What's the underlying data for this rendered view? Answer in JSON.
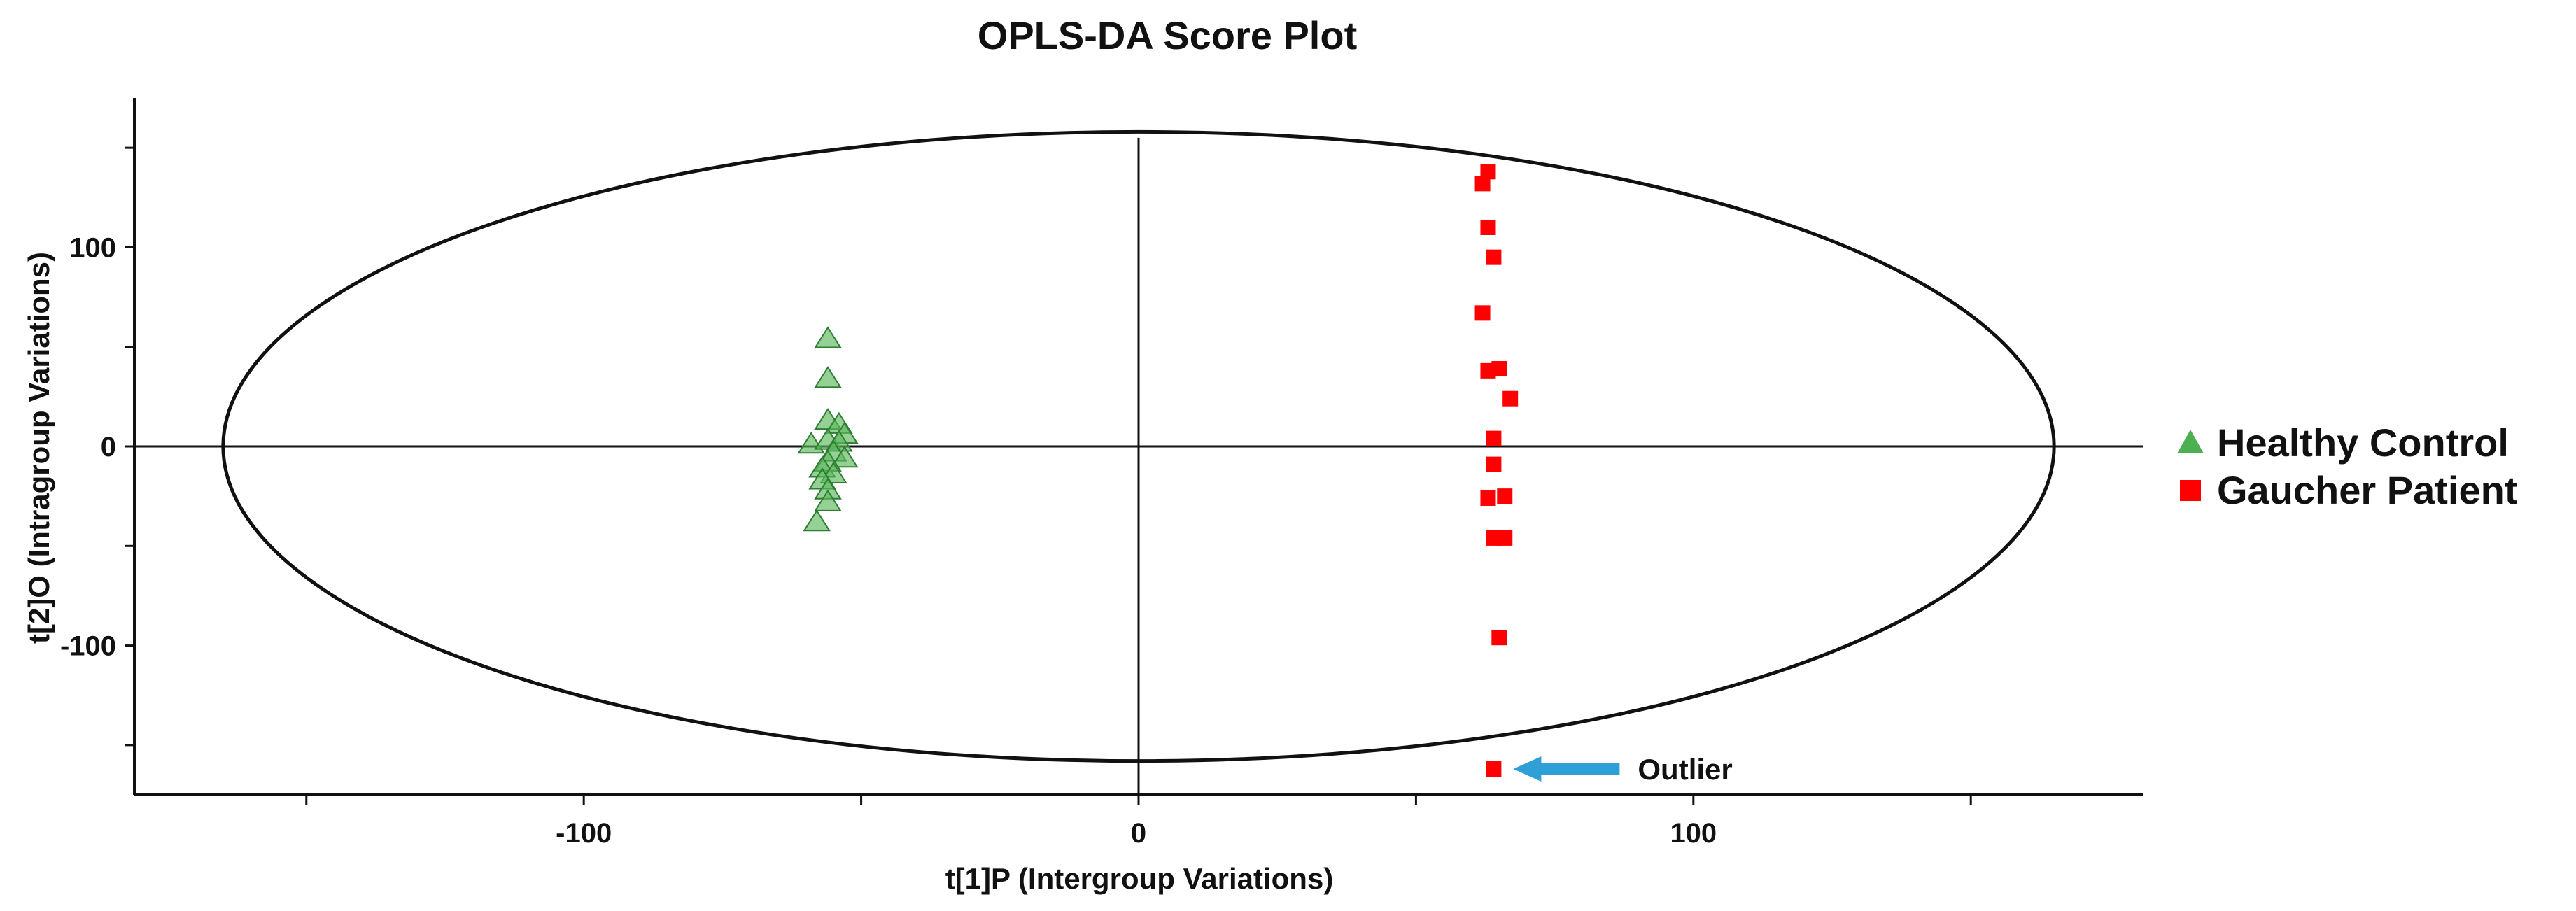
{
  "chart_data": {
    "type": "scatter",
    "title": "OPLS-DA Score Plot",
    "xlabel": "t[1]P (Intergroup Variations)",
    "ylabel": "t[2]O (Intragroup Variations)",
    "xlim": [
      -181,
      181
    ],
    "ylim": [
      -175,
      175
    ],
    "x_ticks": [
      -100,
      0,
      100
    ],
    "y_ticks": [
      -100,
      0,
      100
    ],
    "x_tick_labels": [
      "-100",
      "0",
      "100"
    ],
    "y_tick_labels": [
      "-100",
      "0",
      "100"
    ],
    "grid": false,
    "legend_position": "right",
    "ellipse": {
      "center": [
        0,
        0
      ],
      "rx": 165,
      "ry": 158
    },
    "series": [
      {
        "name": "Healthy Control",
        "marker": "triangle",
        "color": "#5cb85c",
        "points": [
          [
            -56,
            54
          ],
          [
            -56,
            34
          ],
          [
            -56,
            13
          ],
          [
            -54,
            11
          ],
          [
            -53,
            6
          ],
          [
            -59,
            1
          ],
          [
            -56,
            3
          ],
          [
            -54,
            2
          ],
          [
            -55,
            -3
          ],
          [
            -53,
            -6
          ],
          [
            -56,
            -8
          ],
          [
            -57,
            -11
          ],
          [
            -55,
            -14
          ],
          [
            -57,
            -17
          ],
          [
            -56,
            -22
          ],
          [
            -56,
            -28
          ],
          [
            -58,
            -38
          ]
        ]
      },
      {
        "name": "Gaucher Patient",
        "marker": "square",
        "color": "#ff0000",
        "points": [
          [
            63,
            138
          ],
          [
            62,
            132
          ],
          [
            63,
            110
          ],
          [
            64,
            95
          ],
          [
            62,
            67
          ],
          [
            63,
            38
          ],
          [
            65,
            39
          ],
          [
            67,
            24
          ],
          [
            64,
            4
          ],
          [
            64,
            -9
          ],
          [
            66,
            -25
          ],
          [
            63,
            -26
          ],
          [
            66,
            -46
          ],
          [
            64,
            -46
          ],
          [
            65,
            -96
          ],
          [
            64,
            -162
          ]
        ]
      }
    ],
    "annotations": [
      {
        "text": "Outlier",
        "point": [
          64,
          -162
        ],
        "arrow_color": "#2f9fd8"
      }
    ]
  }
}
